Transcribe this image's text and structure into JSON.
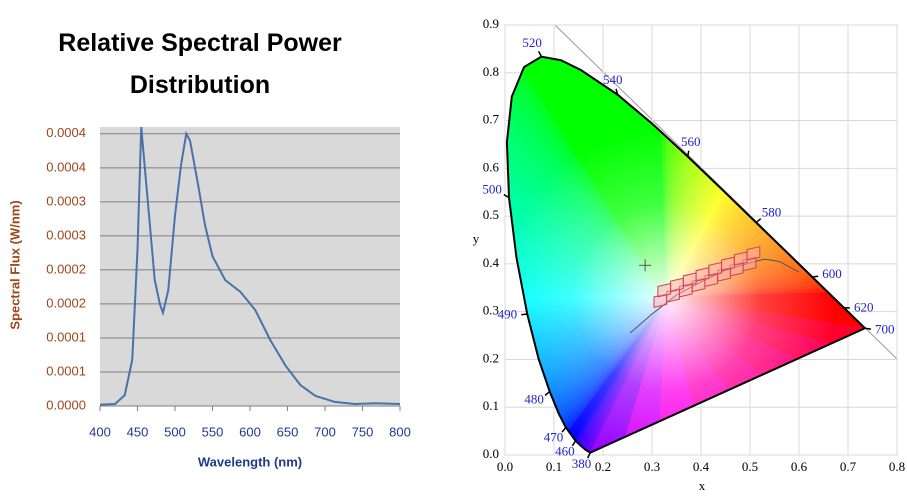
{
  "chart_data": [
    {
      "type": "line",
      "title": "Relative Spectral Power Distribution",
      "x_label": "Wavelength (nm)",
      "y_label": "Spectral Flux (W/nm)",
      "x": [
        400,
        420,
        433,
        443,
        450,
        455,
        460,
        467,
        473,
        480,
        484,
        491,
        500,
        508,
        515,
        520,
        530,
        540,
        550,
        567,
        587,
        607,
        627,
        647,
        667,
        687,
        713,
        740,
        767,
        800
      ],
      "series": [
        {
          "name": "Spectral Flux",
          "color": "#4a72a8",
          "values": [
            2e-06,
            3e-06,
            1.6e-05,
            6.8e-05,
            0.00023,
            0.00041,
            0.000347,
            0.00026,
            0.000185,
            0.000149,
            0.000137,
            0.00017,
            0.00028,
            0.000354,
            0.0004,
            0.00039,
            0.00033,
            0.000266,
            0.00022,
            0.000185,
            0.000168,
            0.000141,
            9.7e-05,
            6e-05,
            3.1e-05,
            1.5e-05,
            6e-06,
            3e-06,
            4e-06,
            3e-06
          ]
        }
      ],
      "xlim": [
        400,
        800
      ],
      "xticks": [
        400,
        450,
        500,
        550,
        600,
        650,
        700,
        750,
        800
      ],
      "ylim": [
        0,
        0.00041
      ],
      "yticks": [
        {
          "value": 0,
          "label": "0.0000"
        },
        {
          "value": 5e-05,
          "label": "0.0001"
        },
        {
          "value": 0.0001,
          "label": "0.0001"
        },
        {
          "value": 0.00015,
          "label": "0.0002"
        },
        {
          "value": 0.0002,
          "label": "0.0002"
        },
        {
          "value": 0.00025,
          "label": "0.0003"
        },
        {
          "value": 0.0003,
          "label": "0.0003"
        },
        {
          "value": 0.00035,
          "label": "0.0004"
        },
        {
          "value": 0.0004,
          "label": "0.0004"
        }
      ],
      "grid": true,
      "background": "#d9d9d9"
    },
    {
      "type": "chromaticity",
      "x_label": "x",
      "y_label": "y",
      "xlim": [
        0,
        0.8
      ],
      "ylim": [
        0,
        0.9
      ],
      "xticks": [
        {
          "value": 0,
          "label": "0.0"
        },
        {
          "value": 0.1,
          "label": "0.1"
        },
        {
          "value": 0.2,
          "label": "0.2"
        },
        {
          "value": 0.3,
          "label": "0.3"
        },
        {
          "value": 0.4,
          "label": "0.4"
        },
        {
          "value": 0.5,
          "label": "0.5"
        },
        {
          "value": 0.6,
          "label": "0.6"
        },
        {
          "value": 0.7,
          "label": "0.7"
        },
        {
          "value": 0.8,
          "label": "0.8"
        }
      ],
      "yticks": [
        {
          "value": 0,
          "label": "0.0"
        },
        {
          "value": 0.1,
          "label": "0.1"
        },
        {
          "value": 0.2,
          "label": "0.2"
        },
        {
          "value": 0.3,
          "label": "0.3"
        },
        {
          "value": 0.4,
          "label": "0.4"
        },
        {
          "value": 0.5,
          "label": "0.5"
        },
        {
          "value": 0.6,
          "label": "0.6"
        },
        {
          "value": 0.7,
          "label": "0.7"
        },
        {
          "value": 0.8,
          "label": "0.8"
        },
        {
          "value": 0.9,
          "label": "0.9"
        }
      ],
      "grid": true,
      "spectral_locus": {
        "wavelength": [
          380,
          null,
          null,
          460,
          470,
          null,
          480,
          null,
          490,
          null,
          500,
          null,
          null,
          null,
          520,
          null,
          null,
          540,
          null,
          560,
          null,
          580,
          null,
          600,
          620,
          null,
          700
        ],
        "x": [
          0.1741,
          0.1644,
          0.1566,
          0.144,
          0.1241,
          0.1096,
          0.0913,
          0.0687,
          0.0454,
          0.0235,
          0.0082,
          0.0039,
          0.0139,
          0.0389,
          0.0743,
          0.1142,
          0.1547,
          0.2296,
          0.3016,
          0.3731,
          0.4441,
          0.5125,
          0.5752,
          0.627,
          0.6915,
          0.719,
          0.7347
        ],
        "y": [
          0.005,
          0.0109,
          0.0177,
          0.0297,
          0.0578,
          0.0868,
          0.1327,
          0.2007,
          0.295,
          0.4127,
          0.5384,
          0.6548,
          0.7502,
          0.812,
          0.8338,
          0.8262,
          0.8059,
          0.7543,
          0.6923,
          0.6245,
          0.5547,
          0.4866,
          0.4242,
          0.3725,
          0.3083,
          0.2809,
          0.2653
        ],
        "color": "#000000",
        "label_color": "#2222cc"
      },
      "planckian_locus": {
        "x": [
          0.255,
          0.3,
          0.35,
          0.4,
          0.45,
          0.5,
          0.53,
          0.56,
          0.6
        ],
        "y": [
          0.255,
          0.295,
          0.335,
          0.362,
          0.387,
          0.402,
          0.41,
          0.405,
          0.383
        ],
        "color": "#555555"
      },
      "white_point": {
        "x": 0.286,
        "y": 0.397
      },
      "bins": {
        "x": [
          0.317,
          0.343,
          0.369,
          0.395,
          0.421,
          0.447,
          0.473,
          0.499,
          0.325,
          0.351,
          0.377,
          0.403,
          0.429,
          0.455,
          0.481,
          0.507
        ],
        "y": [
          0.323,
          0.334,
          0.345,
          0.356,
          0.367,
          0.378,
          0.389,
          0.4,
          0.345,
          0.356,
          0.367,
          0.378,
          0.389,
          0.4,
          0.411,
          0.422
        ],
        "color": "#d04050"
      }
    }
  ]
}
